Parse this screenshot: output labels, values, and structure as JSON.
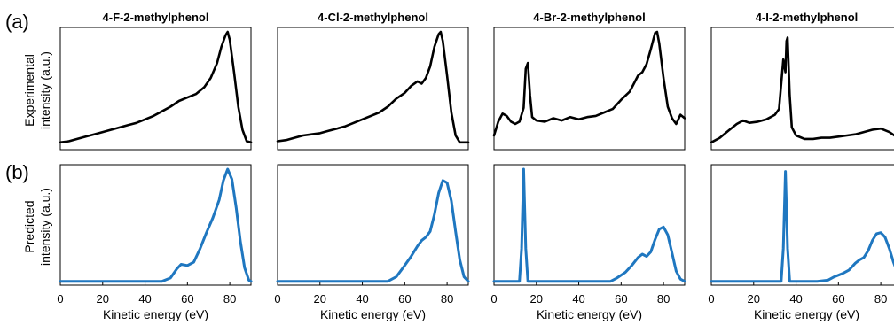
{
  "row_labels": {
    "a": "(a)",
    "b": "(b)"
  },
  "ylabels": {
    "experimental": [
      "Experimental",
      "intensity (a.u.)"
    ],
    "predicted": [
      "Predicted",
      "intensity (a.u.)"
    ]
  },
  "colors": {
    "experimental": "#000000",
    "predicted": "#1f77c0"
  },
  "xlabel": "Kinetic energy (eV)",
  "xlim": [
    0,
    90
  ],
  "xticks": [
    0,
    20,
    40,
    60,
    80
  ],
  "chart_data": [
    {
      "type": "line",
      "title": "4-F-2-methylphenol",
      "xlabel": "Kinetic energy (eV)",
      "xlim": [
        0,
        90
      ],
      "series": [
        {
          "row": "experimental",
          "points": [
            [
              0,
              0.04
            ],
            [
              4,
              0.05
            ],
            [
              8,
              0.07
            ],
            [
              12,
              0.09
            ],
            [
              16,
              0.11
            ],
            [
              20,
              0.13
            ],
            [
              24,
              0.15
            ],
            [
              28,
              0.17
            ],
            [
              32,
              0.19
            ],
            [
              36,
              0.21
            ],
            [
              40,
              0.24
            ],
            [
              44,
              0.27
            ],
            [
              48,
              0.31
            ],
            [
              52,
              0.35
            ],
            [
              56,
              0.4
            ],
            [
              60,
              0.43
            ],
            [
              64,
              0.46
            ],
            [
              68,
              0.52
            ],
            [
              71,
              0.6
            ],
            [
              74,
              0.73
            ],
            [
              76,
              0.87
            ],
            [
              78,
              0.97
            ],
            [
              79,
              1.0
            ],
            [
              80,
              0.93
            ],
            [
              82,
              0.65
            ],
            [
              84,
              0.35
            ],
            [
              86,
              0.15
            ],
            [
              88,
              0.05
            ],
            [
              90,
              0.04
            ]
          ]
        },
        {
          "row": "predicted",
          "points": [
            [
              0,
              0.01
            ],
            [
              40,
              0.01
            ],
            [
              48,
              0.01
            ],
            [
              52,
              0.04
            ],
            [
              55,
              0.12
            ],
            [
              57,
              0.16
            ],
            [
              60,
              0.15
            ],
            [
              63,
              0.18
            ],
            [
              66,
              0.3
            ],
            [
              69,
              0.44
            ],
            [
              72,
              0.57
            ],
            [
              75,
              0.73
            ],
            [
              77,
              0.9
            ],
            [
              79,
              1.0
            ],
            [
              81,
              0.91
            ],
            [
              83,
              0.66
            ],
            [
              85,
              0.36
            ],
            [
              87,
              0.13
            ],
            [
              89,
              0.02
            ],
            [
              90,
              0.01
            ]
          ]
        }
      ]
    },
    {
      "type": "line",
      "title": "4-Cl-2-methylphenol",
      "xlabel": "Kinetic energy (eV)",
      "xlim": [
        0,
        90
      ],
      "series": [
        {
          "row": "experimental",
          "points": [
            [
              0,
              0.05
            ],
            [
              4,
              0.06
            ],
            [
              8,
              0.08
            ],
            [
              12,
              0.1
            ],
            [
              16,
              0.11
            ],
            [
              20,
              0.12
            ],
            [
              24,
              0.14
            ],
            [
              28,
              0.16
            ],
            [
              32,
              0.18
            ],
            [
              36,
              0.21
            ],
            [
              40,
              0.24
            ],
            [
              44,
              0.27
            ],
            [
              48,
              0.3
            ],
            [
              52,
              0.35
            ],
            [
              56,
              0.42
            ],
            [
              60,
              0.47
            ],
            [
              63,
              0.53
            ],
            [
              66,
              0.57
            ],
            [
              68,
              0.55
            ],
            [
              70,
              0.6
            ],
            [
              72,
              0.7
            ],
            [
              74,
              0.87
            ],
            [
              76,
              0.98
            ],
            [
              77,
              1.0
            ],
            [
              78,
              0.92
            ],
            [
              80,
              0.62
            ],
            [
              82,
              0.3
            ],
            [
              84,
              0.1
            ],
            [
              86,
              0.04
            ],
            [
              90,
              0.04
            ]
          ]
        },
        {
          "row": "predicted",
          "points": [
            [
              0,
              0.01
            ],
            [
              40,
              0.01
            ],
            [
              52,
              0.01
            ],
            [
              56,
              0.05
            ],
            [
              60,
              0.15
            ],
            [
              63,
              0.23
            ],
            [
              66,
              0.32
            ],
            [
              68,
              0.37
            ],
            [
              70,
              0.4
            ],
            [
              72,
              0.45
            ],
            [
              74,
              0.6
            ],
            [
              76,
              0.79
            ],
            [
              78,
              0.9
            ],
            [
              80,
              0.88
            ],
            [
              82,
              0.72
            ],
            [
              84,
              0.45
            ],
            [
              86,
              0.2
            ],
            [
              88,
              0.05
            ],
            [
              90,
              0.01
            ]
          ]
        }
      ]
    },
    {
      "type": "line",
      "title": "4-Br-2-methylphenol",
      "xlabel": "Kinetic energy (eV)",
      "xlim": [
        0,
        90
      ],
      "series": [
        {
          "row": "experimental",
          "points": [
            [
              0,
              0.1
            ],
            [
              2,
              0.22
            ],
            [
              4,
              0.29
            ],
            [
              6,
              0.27
            ],
            [
              8,
              0.22
            ],
            [
              10,
              0.2
            ],
            [
              12,
              0.22
            ],
            [
              14,
              0.34
            ],
            [
              15,
              0.68
            ],
            [
              16,
              0.73
            ],
            [
              17,
              0.45
            ],
            [
              18,
              0.26
            ],
            [
              20,
              0.23
            ],
            [
              24,
              0.22
            ],
            [
              28,
              0.25
            ],
            [
              32,
              0.23
            ],
            [
              36,
              0.26
            ],
            [
              40,
              0.24
            ],
            [
              44,
              0.26
            ],
            [
              48,
              0.27
            ],
            [
              52,
              0.3
            ],
            [
              56,
              0.33
            ],
            [
              60,
              0.41
            ],
            [
              64,
              0.48
            ],
            [
              66,
              0.55
            ],
            [
              68,
              0.62
            ],
            [
              70,
              0.65
            ],
            [
              72,
              0.72
            ],
            [
              74,
              0.85
            ],
            [
              76,
              0.99
            ],
            [
              77,
              1.0
            ],
            [
              78,
              0.9
            ],
            [
              80,
              0.6
            ],
            [
              82,
              0.35
            ],
            [
              84,
              0.25
            ],
            [
              86,
              0.2
            ],
            [
              88,
              0.28
            ],
            [
              90,
              0.25
            ]
          ]
        },
        {
          "row": "predicted",
          "points": [
            [
              0,
              0.01
            ],
            [
              12,
              0.01
            ],
            [
              13,
              0.3
            ],
            [
              14,
              1.0
            ],
            [
              15,
              0.3
            ],
            [
              16,
              0.01
            ],
            [
              40,
              0.01
            ],
            [
              55,
              0.01
            ],
            [
              58,
              0.04
            ],
            [
              62,
              0.09
            ],
            [
              65,
              0.15
            ],
            [
              68,
              0.22
            ],
            [
              70,
              0.25
            ],
            [
              72,
              0.23
            ],
            [
              74,
              0.27
            ],
            [
              76,
              0.38
            ],
            [
              78,
              0.47
            ],
            [
              80,
              0.49
            ],
            [
              82,
              0.42
            ],
            [
              84,
              0.26
            ],
            [
              86,
              0.1
            ],
            [
              88,
              0.03
            ],
            [
              90,
              0.01
            ]
          ]
        }
      ]
    },
    {
      "type": "line",
      "title": "4-I-2-methylphenol",
      "xlabel": "Kinetic energy (eV)",
      "xlim": [
        0,
        90
      ],
      "series": [
        {
          "row": "experimental",
          "points": [
            [
              0,
              0.04
            ],
            [
              4,
              0.08
            ],
            [
              8,
              0.14
            ],
            [
              12,
              0.2
            ],
            [
              15,
              0.23
            ],
            [
              18,
              0.21
            ],
            [
              22,
              0.22
            ],
            [
              26,
              0.24
            ],
            [
              30,
              0.28
            ],
            [
              32,
              0.33
            ],
            [
              34,
              0.76
            ],
            [
              35,
              0.65
            ],
            [
              35.5,
              0.92
            ],
            [
              36,
              0.95
            ],
            [
              37,
              0.45
            ],
            [
              38,
              0.17
            ],
            [
              40,
              0.1
            ],
            [
              44,
              0.07
            ],
            [
              48,
              0.07
            ],
            [
              52,
              0.08
            ],
            [
              56,
              0.08
            ],
            [
              60,
              0.09
            ],
            [
              64,
              0.1
            ],
            [
              68,
              0.11
            ],
            [
              72,
              0.13
            ],
            [
              76,
              0.15
            ],
            [
              80,
              0.16
            ],
            [
              84,
              0.13
            ],
            [
              88,
              0.08
            ],
            [
              90,
              0.07
            ]
          ]
        },
        {
          "row": "predicted",
          "points": [
            [
              0,
              0.01
            ],
            [
              33,
              0.01
            ],
            [
              34,
              0.3
            ],
            [
              35,
              0.98
            ],
            [
              36,
              0.3
            ],
            [
              37,
              0.01
            ],
            [
              50,
              0.01
            ],
            [
              55,
              0.02
            ],
            [
              58,
              0.05
            ],
            [
              62,
              0.08
            ],
            [
              65,
              0.11
            ],
            [
              68,
              0.17
            ],
            [
              70,
              0.2
            ],
            [
              72,
              0.22
            ],
            [
              74,
              0.28
            ],
            [
              76,
              0.37
            ],
            [
              78,
              0.43
            ],
            [
              80,
              0.44
            ],
            [
              82,
              0.4
            ],
            [
              84,
              0.3
            ],
            [
              86,
              0.18
            ],
            [
              88,
              0.08
            ],
            [
              90,
              0.03
            ]
          ]
        }
      ]
    }
  ]
}
